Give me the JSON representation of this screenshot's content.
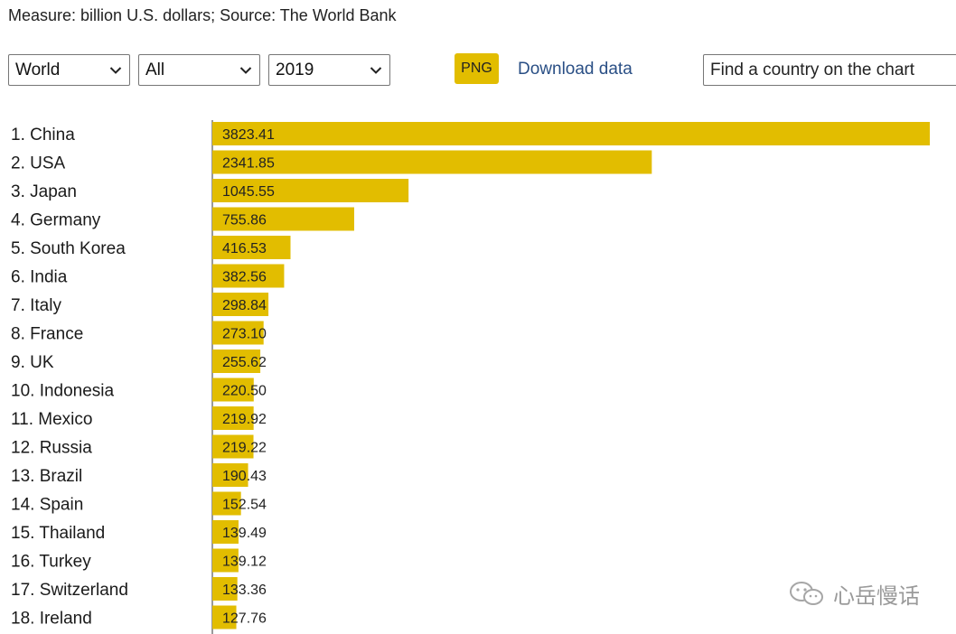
{
  "header": {
    "measure_text": "Measure: billion U.S. dollars; Source: The World Bank"
  },
  "controls": {
    "region_select": {
      "value": "World"
    },
    "category_select": {
      "value": "All"
    },
    "year_select": {
      "value": "2019"
    },
    "png_label": "PNG",
    "download_label": "Download data",
    "search_placeholder": "Find a country on the chart"
  },
  "watermark": {
    "text": "心岳慢话"
  },
  "colors": {
    "bar": "#e2bd00",
    "button": "#e2bd00",
    "link": "#2a4f85"
  },
  "chart_data": {
    "type": "bar",
    "orientation": "horizontal",
    "title": "",
    "xlabel": "",
    "ylabel": "",
    "unit": "billion U.S. dollars",
    "xlim": [
      0,
      3823.41
    ],
    "grid": false,
    "categories": [
      "1. China",
      "2. USA",
      "3. Japan",
      "4. Germany",
      "5. South Korea",
      "6. India",
      "7. Italy",
      "8. France",
      "9. UK",
      "10. Indonesia",
      "11. Mexico",
      "12. Russia",
      "13. Brazil",
      "14. Spain",
      "15. Thailand",
      "16. Turkey",
      "17. Switzerland",
      "18. Ireland"
    ],
    "values": [
      3823.41,
      2341.85,
      1045.55,
      755.86,
      416.53,
      382.56,
      298.84,
      273.1,
      255.62,
      220.5,
      219.92,
      219.22,
      190.43,
      152.54,
      139.49,
      139.12,
      133.36,
      127.76
    ],
    "value_labels": [
      "3823.41",
      "2341.85",
      "1045.55",
      "755.86",
      "416.53",
      "382.56",
      "298.84",
      "273.10",
      "255.62",
      "220.50",
      "219.92",
      "219.22",
      "190.43",
      "152.54",
      "139.49",
      "139.12",
      "133.36",
      "127.76"
    ]
  }
}
